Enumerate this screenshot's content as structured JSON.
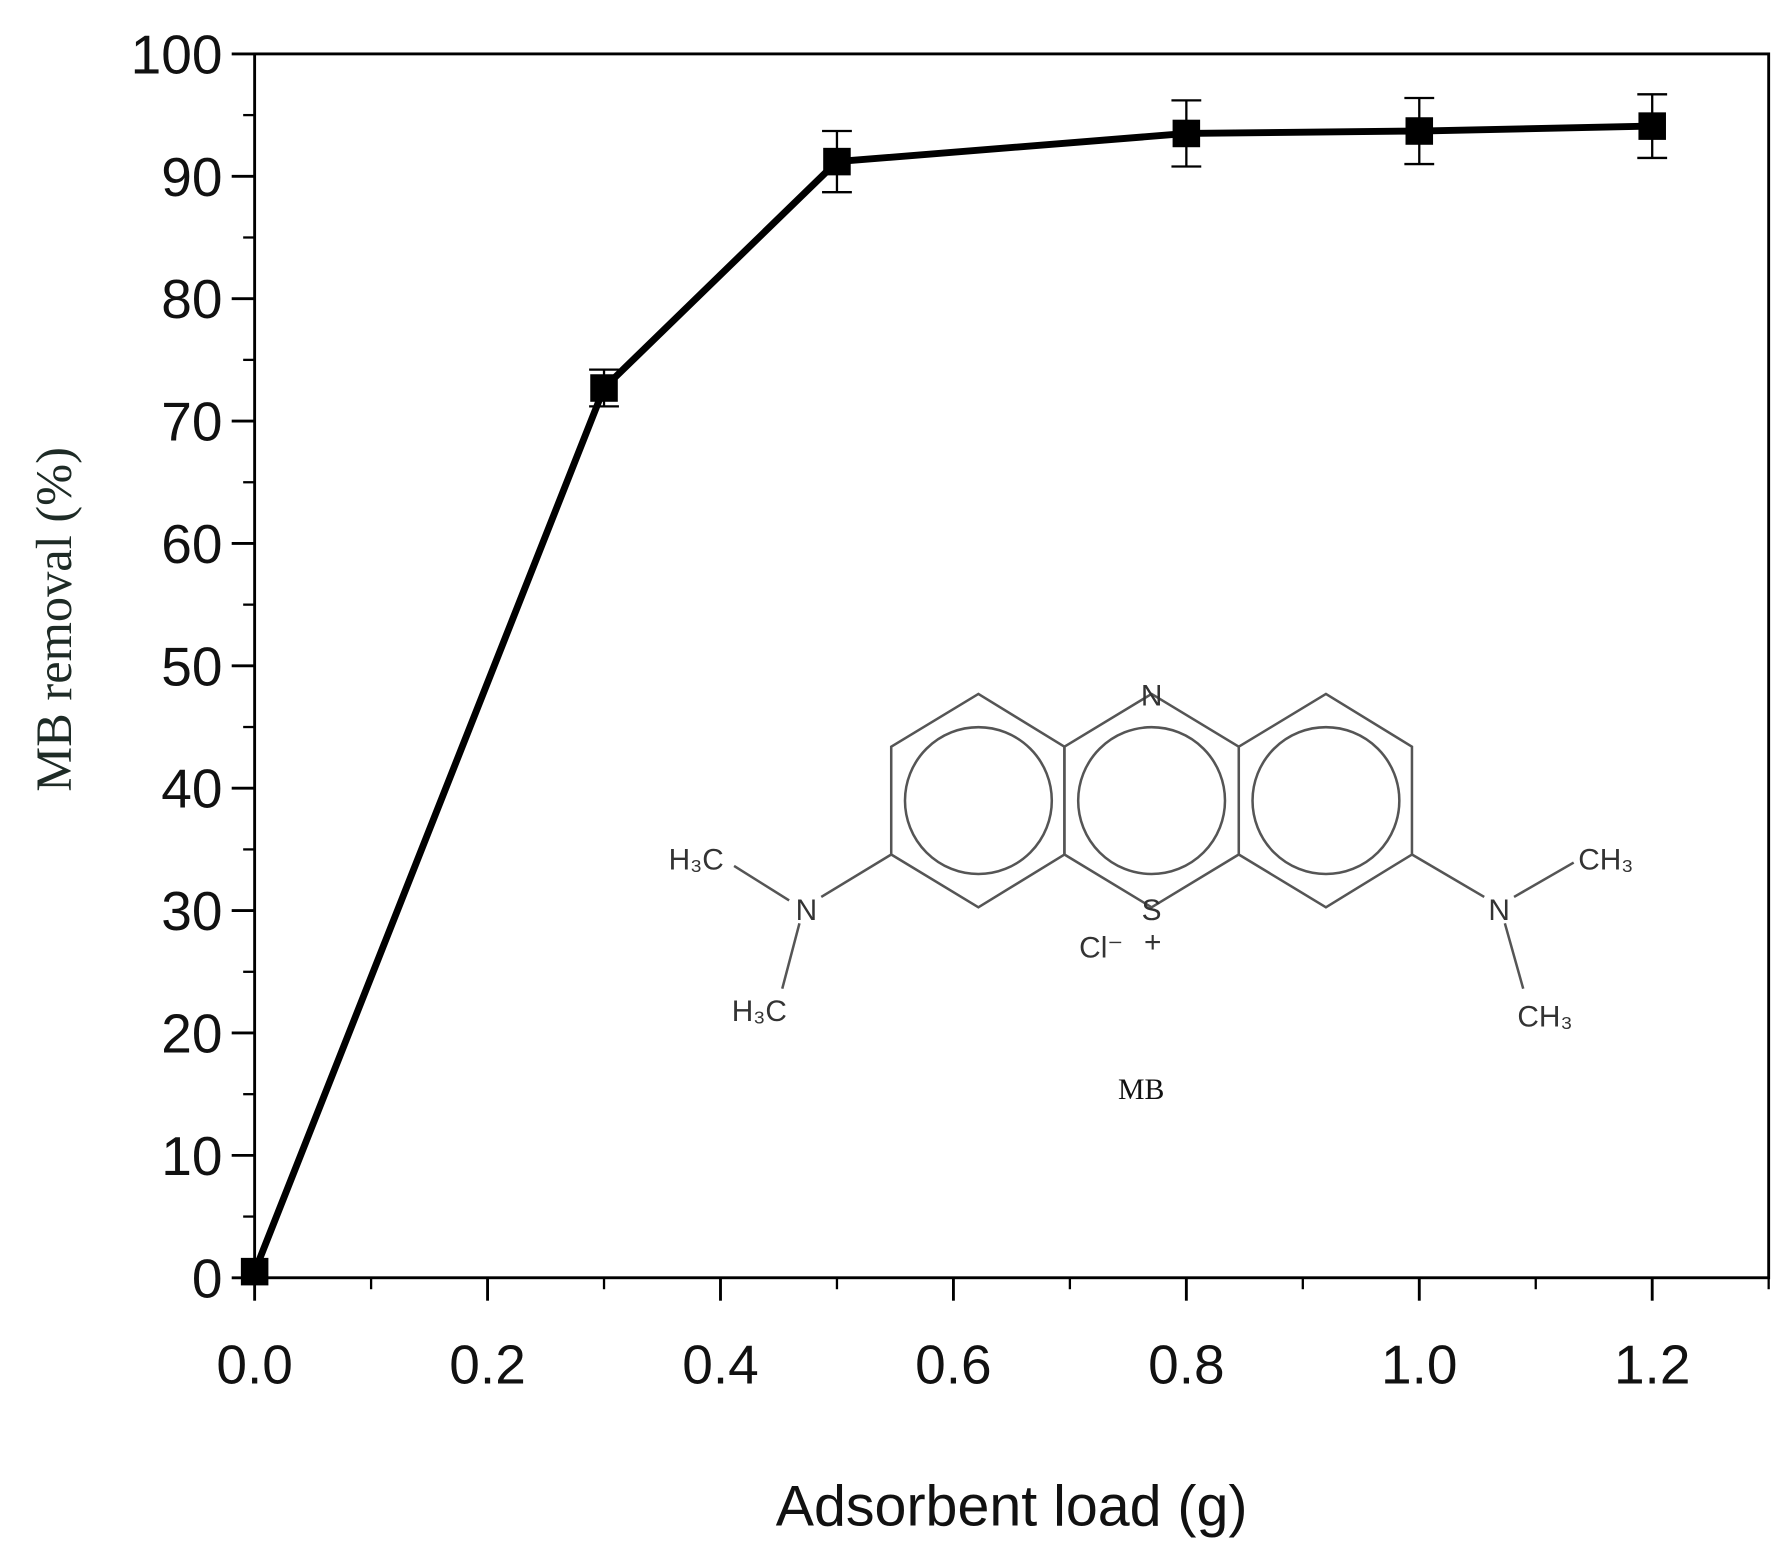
{
  "chart_data": {
    "type": "line",
    "x_label": "Adsorbent load (g)",
    "y_label": "MB removal (%)",
    "x": [
      0,
      0.3,
      0.5,
      0.8,
      1.0,
      1.2
    ],
    "series": [
      {
        "color": "#000000",
        "values": [
          0.5,
          72.7,
          91.2,
          93.5,
          93.7,
          94.1
        ],
        "errors": [
          0,
          1.5,
          2.5,
          2.7,
          2.7,
          2.6
        ]
      }
    ],
    "xlim": [
      0,
      1.3
    ],
    "ylim": [
      0,
      100
    ],
    "xticks": [
      {
        "value": 0,
        "label": "0.0"
      },
      0.2,
      0.4,
      0.6,
      0.8,
      {
        "value": 1,
        "label": "1.0"
      },
      1.2
    ],
    "yticks": [
      0,
      10,
      20,
      30,
      40,
      50,
      60,
      70,
      80,
      90,
      100
    ],
    "xminorticks": [
      0.1,
      0.3,
      0.5,
      0.7,
      0.9,
      1.1,
      1.3
    ],
    "yminorticks": [
      5,
      15,
      25,
      35,
      45,
      55,
      65,
      75,
      85,
      95
    ],
    "structure": {
      "name": "MB",
      "atoms": [
        "N",
        "S",
        "Cl⁻",
        "+",
        "H₃C",
        "H₃C",
        "N",
        "N",
        "CH₃",
        "CH₃"
      ]
    }
  }
}
